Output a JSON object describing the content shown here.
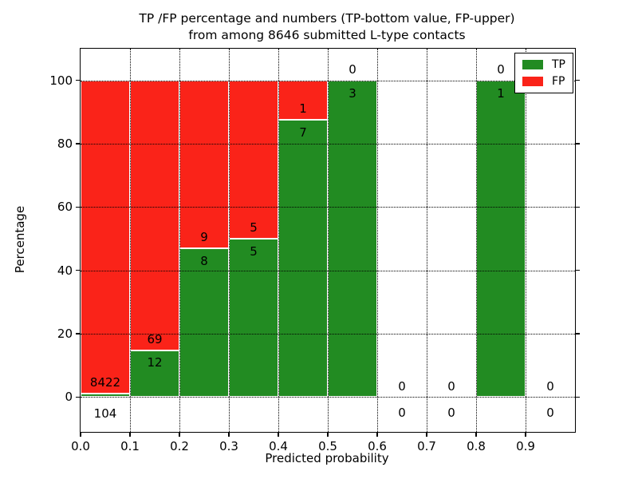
{
  "figure": {
    "title_line1": "TP /FP percentage and numbers (TP-bottom value, FP-upper)",
    "title_line2": "from among 8646 submitted L-type contacts",
    "xlabel": "Predicted probability",
    "ylabel": "Percentage"
  },
  "legend": {
    "items": [
      {
        "label": "TP",
        "color": "#228b22"
      },
      {
        "label": "FP",
        "color": "#fa2319"
      }
    ]
  },
  "chart_data": {
    "type": "bar",
    "stacked": true,
    "title": "TP /FP percentage and numbers (TP-bottom value, FP-upper) from among 8646 submitted L-type contacts",
    "xlabel": "Predicted probability",
    "ylabel": "Percentage",
    "total_submitted": 8646,
    "xlim": [
      0.0,
      1.0
    ],
    "ylim": [
      -11,
      110
    ],
    "bin_width": 0.1,
    "bins_start": [
      0.0,
      0.1,
      0.2,
      0.3,
      0.4,
      0.5,
      0.6,
      0.7,
      0.8,
      0.9
    ],
    "x_tick_labels": [
      "0.0",
      "0.1",
      "0.2",
      "0.3",
      "0.4",
      "0.5",
      "0.6",
      "0.7",
      "0.8",
      "0.9"
    ],
    "y_tick_values": [
      0,
      20,
      40,
      60,
      80,
      100
    ],
    "grid": "dotted-black",
    "bar_edge_color": "#ffffff",
    "legend_position": "upper right",
    "series": [
      {
        "name": "TP",
        "color": "#228b22",
        "counts": [
          104,
          12,
          8,
          5,
          7,
          3,
          0,
          0,
          1,
          0
        ]
      },
      {
        "name": "FP",
        "color": "#fa2319",
        "counts": [
          8422,
          69,
          9,
          5,
          1,
          0,
          0,
          0,
          0,
          0
        ]
      }
    ],
    "tp_percent": [
      1.22,
      14.81,
      47.06,
      50.0,
      87.5,
      100.0,
      null,
      null,
      100.0,
      null
    ]
  }
}
